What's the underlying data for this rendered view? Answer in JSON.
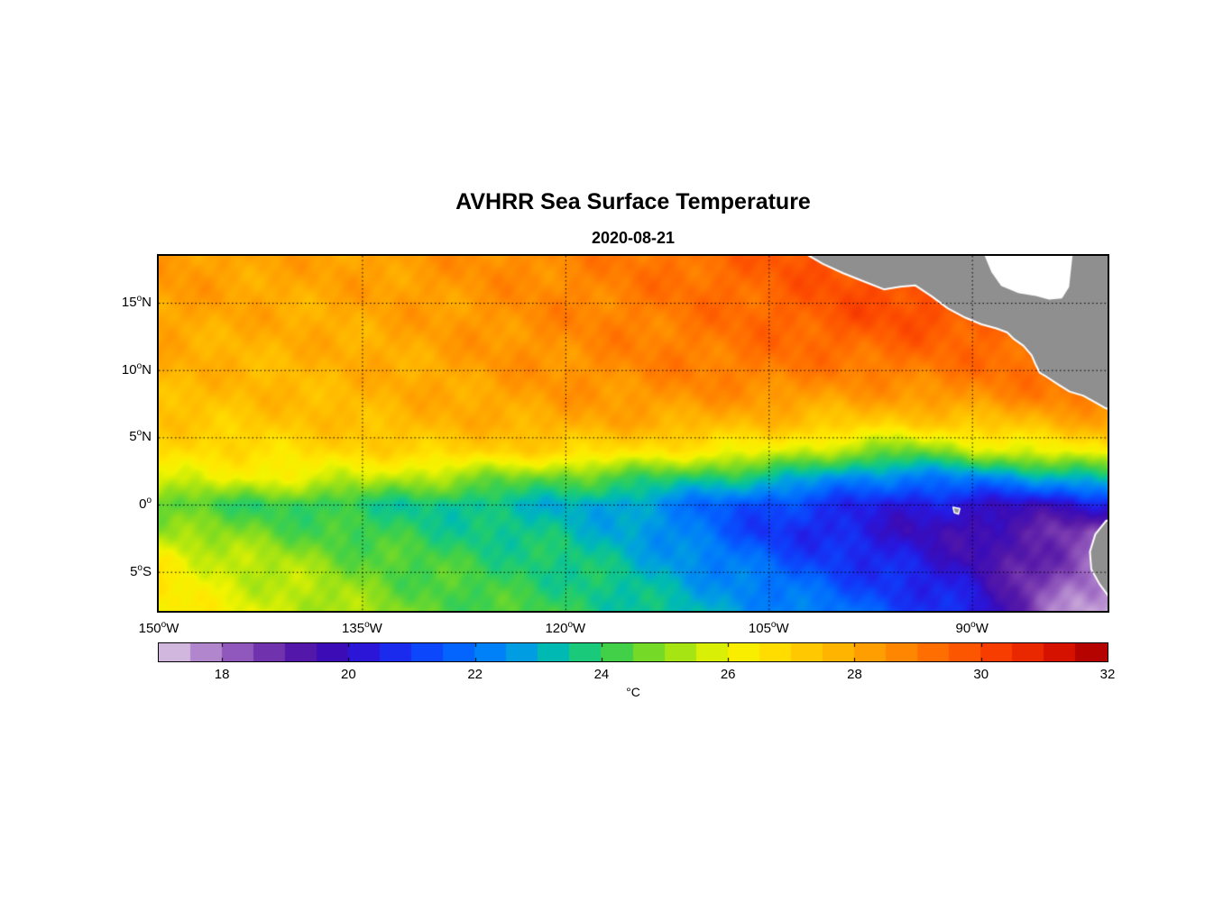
{
  "header": {
    "title": "AVHRR Sea Surface Temperature",
    "subtitle": "2020-08-21"
  },
  "axes": {
    "deg_symbol": "o",
    "xticks": [
      {
        "lon": -150,
        "value": "150",
        "hemi": "W"
      },
      {
        "lon": -135,
        "value": "135",
        "hemi": "W"
      },
      {
        "lon": -120,
        "value": "120",
        "hemi": "W"
      },
      {
        "lon": -105,
        "value": "105",
        "hemi": "W"
      },
      {
        "lon": -90,
        "value": "90",
        "hemi": "W"
      }
    ],
    "yticks": [
      {
        "lat": 15,
        "value": "15",
        "hemi": "N"
      },
      {
        "lat": 10,
        "value": "10",
        "hemi": "N"
      },
      {
        "lat": 5,
        "value": "5",
        "hemi": "N"
      },
      {
        "lat": 0,
        "value": "0",
        "hemi": ""
      },
      {
        "lat": -5,
        "value": "5",
        "hemi": "S"
      }
    ]
  },
  "colorbar": {
    "unit": "°C",
    "min": 17,
    "max": 32,
    "step": 0.5,
    "ticks": [
      18,
      20,
      22,
      24,
      26,
      28,
      30,
      32
    ]
  },
  "chart_data": {
    "type": "heatmap",
    "title": "AVHRR Sea Surface Temperature",
    "date": "2020-08-21",
    "units": "°C",
    "lon_range": [
      -150,
      -80
    ],
    "lat_range": [
      -7.9,
      18.49
    ],
    "value_range": [
      17,
      32
    ],
    "grid_lons": [
      -150,
      -145,
      -140,
      -135,
      -130,
      -125,
      -120,
      -115,
      -110,
      -105,
      -100,
      -95,
      -90,
      -85,
      -80
    ],
    "grid_lats": [
      18.5,
      16,
      14,
      12,
      10,
      8,
      6,
      4,
      2,
      0,
      -2,
      -4,
      -6,
      -8
    ],
    "sst_values": [
      [
        28.4,
        28.2,
        28.1,
        28.2,
        28.4,
        28.6,
        28.8,
        29.0,
        29.3,
        29.6,
        29.9,
        30.2,
        30.4,
        30.5,
        30.6
      ],
      [
        28.3,
        28.1,
        28.0,
        28.1,
        28.3,
        28.5,
        28.7,
        29.0,
        29.2,
        29.5,
        29.8,
        30.0,
        30.2,
        30.3,
        30.4
      ],
      [
        28.2,
        28.0,
        27.9,
        28.0,
        28.2,
        28.5,
        28.7,
        28.9,
        29.1,
        29.4,
        29.8,
        29.9,
        29.8,
        30.0,
        30.2
      ],
      [
        28.0,
        27.8,
        27.8,
        27.9,
        28.1,
        28.4,
        28.6,
        28.8,
        29.0,
        29.2,
        29.4,
        29.5,
        29.3,
        29.5,
        29.8
      ],
      [
        27.8,
        27.7,
        27.7,
        27.8,
        28.0,
        28.3,
        28.5,
        28.7,
        28.9,
        29.0,
        28.9,
        29.0,
        29.1,
        29.3,
        29.5
      ],
      [
        27.6,
        27.5,
        27.6,
        27.7,
        27.9,
        28.1,
        28.3,
        28.4,
        28.5,
        28.4,
        28.2,
        28.3,
        28.5,
        28.8,
        29.0
      ],
      [
        27.3,
        27.2,
        27.3,
        27.5,
        27.7,
        27.8,
        27.9,
        27.9,
        27.7,
        27.5,
        27.2,
        27.0,
        27.2,
        27.6,
        28.0
      ],
      [
        26.7,
        26.7,
        26.8,
        26.9,
        27.0,
        27.0,
        26.9,
        26.6,
        26.3,
        26.0,
        25.2,
        24.6,
        25.4,
        25.9,
        26.4
      ],
      [
        25.9,
        26.0,
        25.9,
        25.6,
        25.2,
        24.8,
        24.5,
        24.2,
        23.8,
        23.4,
        22.6,
        22.0,
        22.3,
        22.8,
        23.4
      ],
      [
        24.4,
        24.2,
        24.0,
        23.8,
        23.6,
        23.3,
        23.1,
        22.7,
        21.9,
        21.2,
        20.8,
        20.4,
        20.1,
        19.9,
        20.3
      ],
      [
        25.2,
        24.8,
        24.5,
        24.1,
        23.9,
        23.6,
        23.4,
        22.9,
        21.9,
        21.0,
        20.5,
        20.0,
        19.6,
        19.0,
        18.4
      ],
      [
        26.4,
        25.5,
        25.1,
        24.6,
        24.2,
        24.0,
        23.7,
        23.2,
        22.4,
        21.6,
        21.0,
        20.4,
        19.8,
        18.9,
        17.9
      ],
      [
        26.4,
        25.8,
        25.4,
        24.9,
        24.4,
        24.1,
        23.9,
        23.4,
        22.8,
        22.1,
        21.5,
        20.8,
        20.1,
        18.6,
        17.5
      ],
      [
        26.6,
        26.0,
        25.6,
        25.1,
        24.6,
        24.3,
        24.1,
        23.6,
        23.1,
        22.5,
        22.0,
        21.3,
        20.6,
        18.2,
        17.3
      ]
    ],
    "colormap_stops": [
      [
        17.0,
        "#DFCDE3"
      ],
      [
        17.5,
        "#C39FD6"
      ],
      [
        18.0,
        "#A06CC4"
      ],
      [
        18.6,
        "#7A3BB0"
      ],
      [
        19.2,
        "#5518A8"
      ],
      [
        19.8,
        "#3A0CB8"
      ],
      [
        20.4,
        "#2618E0"
      ],
      [
        21.0,
        "#1238F8"
      ],
      [
        21.6,
        "#045CFF"
      ],
      [
        22.2,
        "#007EFA"
      ],
      [
        22.8,
        "#00A0E0"
      ],
      [
        23.3,
        "#00BCAE"
      ],
      [
        23.8,
        "#1DCB74"
      ],
      [
        24.3,
        "#46D143"
      ],
      [
        24.9,
        "#84DC1F"
      ],
      [
        25.5,
        "#C0EA0A"
      ],
      [
        26.0,
        "#F2F400"
      ],
      [
        26.5,
        "#FFE800"
      ],
      [
        27.0,
        "#FFD200"
      ],
      [
        27.6,
        "#FFBA00"
      ],
      [
        28.2,
        "#FFA000"
      ],
      [
        28.8,
        "#FF8400"
      ],
      [
        29.4,
        "#FF6700"
      ],
      [
        30.0,
        "#FC4A00"
      ],
      [
        30.6,
        "#F02E00"
      ],
      [
        31.2,
        "#D81400"
      ],
      [
        31.6,
        "#C00500"
      ],
      [
        32.0,
        "#A30000"
      ]
    ],
    "gridline_lats": [
      15,
      10,
      5,
      0,
      -5
    ],
    "gridline_lons": [
      -135,
      -120,
      -105,
      -90
    ],
    "land_color": "#8F8F8F",
    "coast_color": "#FFFFFF",
    "land_polygons": {
      "central_america": [
        [
          -102.2,
          19.0
        ],
        [
          -102.2,
          18.6
        ],
        [
          -101.0,
          17.9
        ],
        [
          -99.5,
          17.2
        ],
        [
          -98.0,
          16.6
        ],
        [
          -96.5,
          16.0
        ],
        [
          -95.3,
          16.2
        ],
        [
          -94.2,
          16.3
        ],
        [
          -93.0,
          15.5
        ],
        [
          -91.8,
          14.6
        ],
        [
          -90.5,
          13.9
        ],
        [
          -89.3,
          13.4
        ],
        [
          -88.2,
          13.1
        ],
        [
          -87.4,
          12.8
        ],
        [
          -86.9,
          12.3
        ],
        [
          -86.2,
          11.8
        ],
        [
          -85.6,
          11.1
        ],
        [
          -85.3,
          10.4
        ],
        [
          -85.0,
          9.8
        ],
        [
          -84.5,
          9.5
        ],
        [
          -83.6,
          8.9
        ],
        [
          -82.8,
          8.4
        ],
        [
          -81.8,
          8.1
        ],
        [
          -80.9,
          7.6
        ],
        [
          -80.2,
          7.2
        ],
        [
          -79.7,
          7.0
        ],
        [
          -78.0,
          6.8
        ],
        [
          -78.0,
          19.0
        ]
      ],
      "caribbean_mask": [
        [
          -89.2,
          19.0
        ],
        [
          -88.5,
          17.3
        ],
        [
          -87.8,
          16.3
        ],
        [
          -86.6,
          15.8
        ],
        [
          -85.4,
          15.6
        ],
        [
          -84.3,
          15.3
        ],
        [
          -83.4,
          15.4
        ],
        [
          -82.9,
          16.2
        ],
        [
          -82.6,
          19.0
        ]
      ],
      "south_america": [
        [
          -78.0,
          -0.5
        ],
        [
          -80.1,
          -1.2
        ],
        [
          -80.9,
          -2.2
        ],
        [
          -81.3,
          -3.5
        ],
        [
          -81.2,
          -4.8
        ],
        [
          -80.6,
          -5.9
        ],
        [
          -80.0,
          -6.7
        ],
        [
          -79.5,
          -7.6
        ],
        [
          -78.0,
          -8.5
        ]
      ],
      "galapagos": [
        [
          -91.4,
          -0.2
        ],
        [
          -90.9,
          -0.3
        ],
        [
          -91.0,
          -0.7
        ],
        [
          -91.3,
          -0.6
        ]
      ]
    }
  }
}
